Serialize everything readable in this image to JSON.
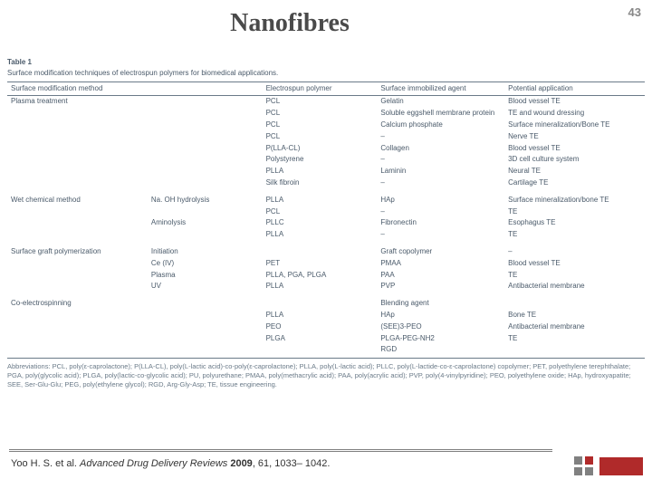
{
  "page_number": "43",
  "title": "Nanofibres",
  "table": {
    "label": "Table 1",
    "caption": "Surface modification techniques of electrospun polymers for biomedical applications.",
    "col_widths": [
      "22%",
      "18%",
      "18%",
      "20%",
      "22%"
    ],
    "headers": [
      "Surface modification method",
      "",
      "Electrospun polymer",
      "Surface immobilized agent",
      "Potential application"
    ],
    "groups": [
      {
        "rows": [
          [
            "Plasma treatment",
            "",
            "PCL",
            "Gelatin",
            "Blood vessel TE"
          ],
          [
            "",
            "",
            "PCL",
            "Soluble eggshell membrane protein",
            "TE and wound dressing"
          ],
          [
            "",
            "",
            "PCL",
            "Calcium phosphate",
            "Surface mineralization/Bone TE"
          ],
          [
            "",
            "",
            "PCL",
            "–",
            "Nerve TE"
          ],
          [
            "",
            "",
            "P(LLA-CL)",
            "Collagen",
            "Blood vessel TE"
          ],
          [
            "",
            "",
            "Polystyrene",
            "–",
            "3D cell culture system"
          ],
          [
            "",
            "",
            "PLLA",
            "Laminin",
            "Neural TE"
          ],
          [
            "",
            "",
            "Silk fibroin",
            "–",
            "Cartilage TE"
          ]
        ]
      },
      {
        "rows": [
          [
            "Wet chemical method",
            "Na. OH hydrolysis",
            "PLLA",
            "HAp",
            "Surface mineralization/bone TE"
          ],
          [
            "",
            "",
            "PCL",
            "–",
            "TE"
          ],
          [
            "",
            "Aminolysis",
            "PLLC",
            "Fibronectin",
            "Esophagus TE"
          ],
          [
            "",
            "",
            "PLLA",
            "–",
            "TE"
          ]
        ]
      },
      {
        "rows": [
          [
            "Surface graft polymerization",
            "Initiation",
            "",
            "Graft copolymer",
            "–"
          ],
          [
            "",
            "Ce (IV)",
            "PET",
            "PMAA",
            "Blood vessel TE"
          ],
          [
            "",
            "Plasma",
            "PLLA, PGA, PLGA",
            "PAA",
            "TE"
          ],
          [
            "",
            "UV",
            "PLLA",
            "PVP",
            "Antibacterial membrane"
          ]
        ]
      },
      {
        "rows": [
          [
            "Co-electrospinning",
            "",
            "",
            "Blending agent",
            ""
          ],
          [
            "",
            "",
            "PLLA",
            "HAp",
            "Bone TE"
          ],
          [
            "",
            "",
            "PEO",
            "(SEE)3-PEO",
            "Antibacterial membrane"
          ],
          [
            "",
            "",
            "PLGA",
            "PLGA-PEG-NH2",
            "TE"
          ],
          [
            "",
            "",
            "",
            "RGD",
            ""
          ]
        ]
      }
    ],
    "abbrev": "Abbreviations: PCL, poly(ε-caprolactone); P(LLA-CL), poly(L-lactic acid)-co-poly(ε-caprolactone); PLLA, poly(L-lactic acid); PLLC, poly(L-lactide-co-ε-caprolactone) copolymer; PET, polyethylene terephthalate; PGA, poly(glycolic acid); PLGA, poly(lactic-co-glycolic acid); PU, polyurethane; PMAA, poly(methacrylic acid); PAA, poly(acrylic acid); PVP, poly(4-vinylpyridine); PEO, polyethylene oxide; HAp, hydroxyapatite; SEE, Ser-Glu-Glu; PEG, poly(ethylene glycol); RGD, Arg-Gly-Asp; TE, tissue engineering."
  },
  "citation": {
    "authors": "Yoo H. S. et al. ",
    "journal": "Advanced Drug Delivery Reviews ",
    "year": "2009",
    "rest": ", 61, 1033– 1042."
  },
  "colors": {
    "title": "#4a4a4a",
    "table_text": "#4a5a6a",
    "rule": "#6a7a88",
    "red": "#b02a2a",
    "logo_gray": "#808080"
  }
}
